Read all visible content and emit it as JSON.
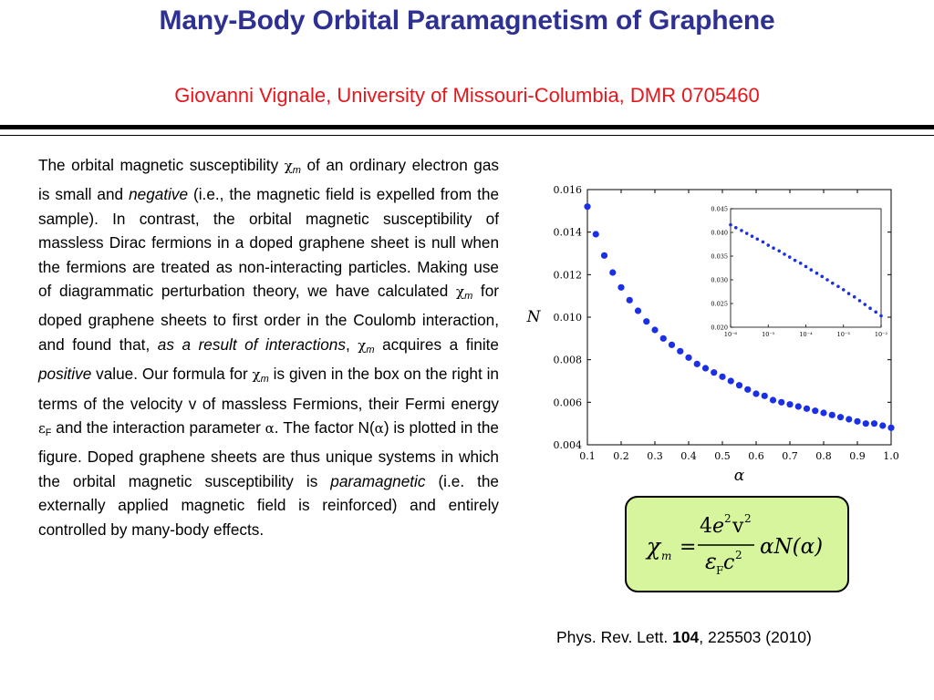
{
  "title": "Many-Body Orbital Paramagnetism of Graphene",
  "author": "Giovanni Vignale, University of Missouri-Columbia, DMR 0705460",
  "body": {
    "t01": "The orbital magnetic susceptibility ",
    "chi": "χ",
    "m": "m",
    "t02": " of an ordinary electron gas  is small and ",
    "negative": "negative",
    "t03": " (i.e., the magnetic field is expelled from the sample). In contrast, the orbital magnetic susceptibility of massless Dirac fermions in a doped graphene sheet is null when the fermions are treated as non-interacting particles. Making use of diagrammatic perturbation theory, we have calculated ",
    "t04": " for doped graphene sheets to first order in the Coulomb interaction, and found that, ",
    "as_result": "as a result of interactions",
    "t05": ", ",
    "t06": "  acquires a finite ",
    "positive": "positive",
    "t07": " value. Our formula for ",
    "t08": " is given in the box on the right in terms of the velocity v of massless Fermions, their Fermi energy ",
    "eps": "ε",
    "F": "F",
    "t09": " and the interaction parameter ",
    "alpha": "α",
    "t10": ".  The factor N(",
    "t11": ") is plotted in the figure.   Doped graphene sheets are thus unique systems in which the orbital magnetic susceptibility is ",
    "paramagnetic": "paramagnetic",
    "t12": " (i.e. the externally applied magnetic field is reinforced) and entirely controlled by many-body effects."
  },
  "formula": {
    "lhs": "χ",
    "lhs_sub": "m",
    "eq": "=",
    "num_4": "4",
    "num_e": "e",
    "num_e_sup": "2",
    "num_v": "v",
    "num_v_sup": "2",
    "den_eps": "ε",
    "den_F": "F",
    "den_c": "c",
    "den_c_sup": "2",
    "rhs": "αN(α)"
  },
  "citation": {
    "prefix": "Phys. Rev. Lett. ",
    "volume": "104",
    "suffix": ", 225503 (2010)"
  },
  "chart_data": [
    {
      "type": "scatter",
      "xlabel": "α",
      "ylabel": "N",
      "xlim": [
        0.1,
        1.0
      ],
      "ylim": [
        0.004,
        0.016
      ],
      "xticks": [
        "0.1",
        "0.2",
        "0.3",
        "0.4",
        "0.5",
        "0.6",
        "0.7",
        "0.8",
        "0.9",
        "1.0"
      ],
      "yticks": [
        "0.004",
        "0.006",
        "0.008",
        "0.010",
        "0.012",
        "0.014",
        "0.016"
      ],
      "point_color": "#1a2fe6",
      "x": [
        0.1,
        0.125,
        0.15,
        0.175,
        0.2,
        0.225,
        0.25,
        0.275,
        0.3,
        0.325,
        0.35,
        0.375,
        0.4,
        0.425,
        0.45,
        0.475,
        0.5,
        0.525,
        0.55,
        0.575,
        0.6,
        0.625,
        0.65,
        0.675,
        0.7,
        0.725,
        0.75,
        0.775,
        0.8,
        0.825,
        0.85,
        0.875,
        0.9,
        0.925,
        0.95,
        0.975,
        1.0
      ],
      "y": [
        0.0152,
        0.0139,
        0.0129,
        0.0121,
        0.0114,
        0.0108,
        0.0103,
        0.0098,
        0.0094,
        0.009,
        0.0087,
        0.0084,
        0.0081,
        0.0078,
        0.0076,
        0.0074,
        0.0072,
        0.007,
        0.0068,
        0.0066,
        0.0064,
        0.0063,
        0.0061,
        0.006,
        0.0059,
        0.0058,
        0.0057,
        0.0056,
        0.0055,
        0.0054,
        0.0053,
        0.0052,
        0.0051,
        0.005,
        0.005,
        0.0049,
        0.0048
      ]
    },
    {
      "type": "scatter",
      "xlim_log10": [
        -6,
        -2
      ],
      "ylim": [
        0.02,
        0.045
      ],
      "xticks": [
        "10⁻⁶",
        "10⁻⁵",
        "10⁻⁴",
        "10⁻³",
        "10⁻²"
      ],
      "yticks": [
        "0.020",
        "0.025",
        "0.030",
        "0.035",
        "0.040",
        "0.045"
      ],
      "point_color": "#1a2fe6",
      "log10x": [
        -6.0,
        -5.86,
        -5.71,
        -5.57,
        -5.43,
        -5.29,
        -5.14,
        -5.0,
        -4.86,
        -4.71,
        -4.57,
        -4.43,
        -4.29,
        -4.14,
        -4.0,
        -3.86,
        -3.71,
        -3.57,
        -3.43,
        -3.29,
        -3.14,
        -3.0,
        -2.86,
        -2.71,
        -2.57,
        -2.43,
        -2.29,
        -2.14,
        -2.0
      ],
      "y": [
        0.0416,
        0.041,
        0.0404,
        0.0398,
        0.0392,
        0.0386,
        0.038,
        0.0373,
        0.0367,
        0.0361,
        0.0354,
        0.0348,
        0.0341,
        0.0335,
        0.0328,
        0.0321,
        0.0314,
        0.0307,
        0.03,
        0.0293,
        0.0286,
        0.0279,
        0.0271,
        0.0264,
        0.0256,
        0.0248,
        0.024,
        0.0232,
        0.0224
      ]
    }
  ]
}
